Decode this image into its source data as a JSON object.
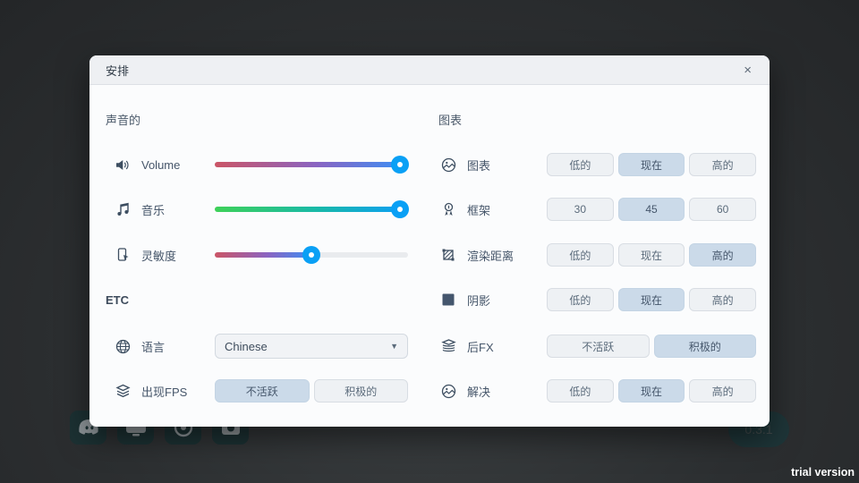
{
  "window": {
    "title": "安排",
    "close": "×"
  },
  "overlay": {
    "version": "0.3.1",
    "trial": "trial version",
    "social_icons": [
      "discord-icon",
      "display-icon",
      "circle-icon",
      "camera-icon"
    ]
  },
  "sound": {
    "header": "声音的",
    "volume": {
      "label": "Volume",
      "value": 96,
      "icon": "speaker-icon"
    },
    "music": {
      "label": "音乐",
      "value": 96,
      "icon": "music-note-icon"
    },
    "sensitivity": {
      "label": "灵敏度",
      "value": 50,
      "icon": "touch-phone-icon"
    }
  },
  "etc": {
    "header": "ETC",
    "language": {
      "label": "语言",
      "value": "Chinese",
      "icon": "globe-icon"
    },
    "fps": {
      "label": "出现FPS",
      "options": [
        "不活跃",
        "积极的"
      ],
      "selected": "不活跃",
      "icon": "layers-icon"
    }
  },
  "graphics": {
    "header": "图表",
    "rows": [
      {
        "label": "图表",
        "icon": "image-circle-icon",
        "options": [
          "低的",
          "现在",
          "高的"
        ],
        "selected": "现在"
      },
      {
        "label": "框架",
        "icon": "badge-icon",
        "options": [
          "30",
          "45",
          "60"
        ],
        "selected": "45"
      },
      {
        "label": "渲染距离",
        "icon": "render-area-icon",
        "options": [
          "低的",
          "现在",
          "高的"
        ],
        "selected": "高的"
      },
      {
        "label": "阴影",
        "icon": "square-icon",
        "options": [
          "低的",
          "现在",
          "高的"
        ],
        "selected": "现在"
      },
      {
        "label": "后FX",
        "icon": "stack-icon",
        "options": [
          "不活跃",
          "积极的"
        ],
        "selected": "积极的"
      },
      {
        "label": "解决",
        "icon": "image-circle-icon",
        "options": [
          "低的",
          "现在",
          "高的"
        ],
        "selected": "现在"
      }
    ]
  },
  "colors": {
    "accent": "#0aa0f5",
    "selected_bg": "#cbdae9",
    "slider_red": "#cb5566",
    "slider_blue": "#3f8df2",
    "slider_green": "#3ed158",
    "panel_bg": "#fbfcfd",
    "titlebar_bg": "#eef0f3",
    "social_bg": "#1c3133"
  }
}
